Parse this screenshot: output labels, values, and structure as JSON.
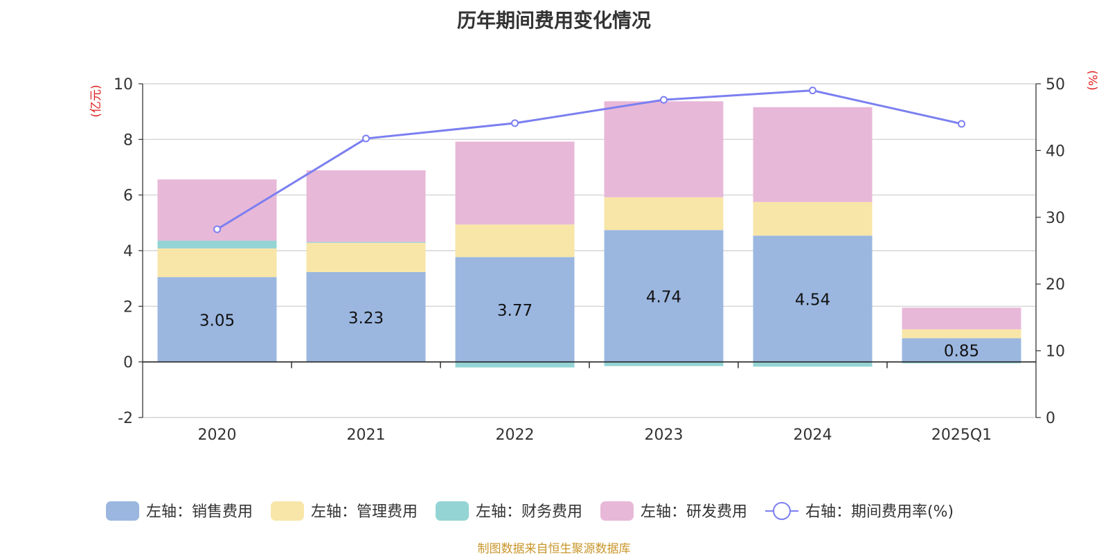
{
  "chart_data": {
    "type": "bar",
    "title": "历年期间费用变化情况",
    "categories": [
      "2020",
      "2021",
      "2022",
      "2023",
      "2024",
      "2025Q1"
    ],
    "left_axis": {
      "unit": "(亿元)",
      "ylim": [
        -2,
        10
      ],
      "ticks": [
        -2,
        0,
        2,
        4,
        6,
        8,
        10
      ]
    },
    "right_axis": {
      "unit": "(%)",
      "ylim": [
        0,
        50
      ],
      "ticks": [
        0,
        10,
        20,
        30,
        40,
        50
      ]
    },
    "series": [
      {
        "name": "左轴：销售费用",
        "type": "bar",
        "axis": "left",
        "color": "#9bb7e0",
        "values": [
          3.05,
          3.23,
          3.77,
          4.74,
          4.54,
          0.85
        ],
        "labels": [
          "3.05",
          "3.23",
          "3.77",
          "4.74",
          "4.54",
          "0.85"
        ]
      },
      {
        "name": "左轴：管理费用",
        "type": "bar",
        "axis": "left",
        "color": "#f8e6a8",
        "values": [
          1.03,
          1.05,
          1.17,
          1.18,
          1.21,
          0.32
        ]
      },
      {
        "name": "左轴：财务费用",
        "type": "bar",
        "axis": "left",
        "color": "#94d4d4",
        "values": [
          0.28,
          0.03,
          -0.2,
          -0.15,
          -0.17,
          -0.05
        ]
      },
      {
        "name": "左轴：研发费用",
        "type": "bar",
        "axis": "left",
        "color": "#e8b8d8",
        "values": [
          2.2,
          2.58,
          2.98,
          3.45,
          3.41,
          0.78
        ]
      },
      {
        "name": "右轴：期间费用率(%)",
        "type": "line",
        "axis": "right",
        "color": "#7b7ff0",
        "values": [
          28.2,
          41.8,
          44.1,
          47.6,
          49.0,
          44.0
        ]
      }
    ],
    "grid": true,
    "legend_position": "bottom"
  },
  "source_text": "制图数据来自恒生聚源数据库"
}
